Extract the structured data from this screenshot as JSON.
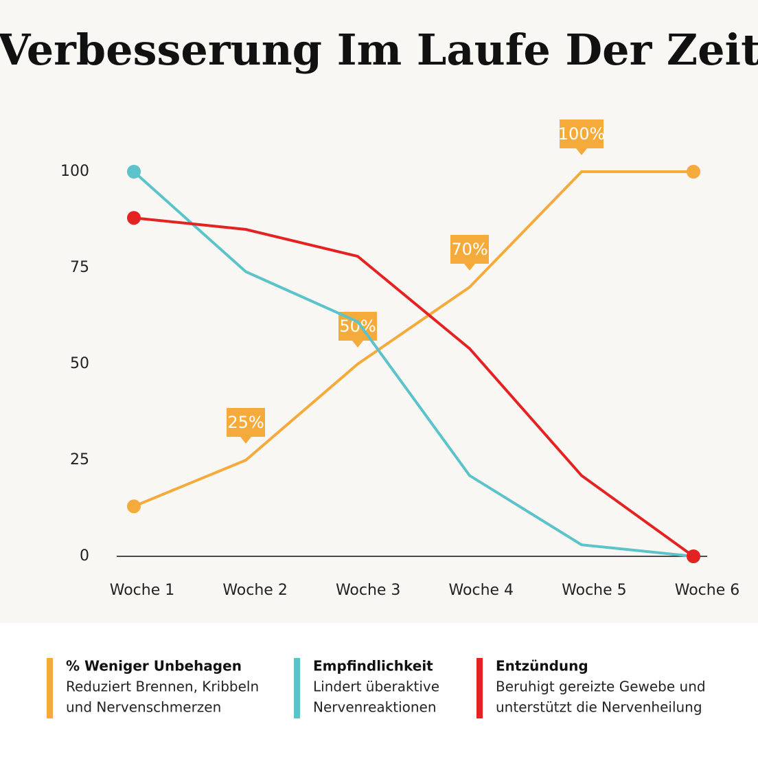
{
  "chart_data": {
    "type": "line",
    "title": "Verbesserung Im Laufe Der Zeit",
    "categories": [
      "Woche 1",
      "Woche 2",
      "Woche 3",
      "Woche 4",
      "Woche 5",
      "Woche 6"
    ],
    "ylim": [
      0,
      100
    ],
    "yticks": [
      0,
      25,
      50,
      75,
      100
    ],
    "grid": false,
    "series": [
      {
        "name": "% Weniger Unbehagen",
        "color": "#f5ab3c",
        "values": [
          13,
          25,
          50,
          70,
          100,
          100
        ],
        "value_labels": [
          null,
          "25%",
          "50%",
          "70%",
          "100%",
          null
        ],
        "description": [
          "Reduziert Brennen, Kribbeln",
          "und Nervenschmerzen"
        ]
      },
      {
        "name": "Empfindlichkeit",
        "color": "#5bc3c9",
        "values": [
          100,
          74,
          61,
          21,
          3,
          0
        ],
        "description": [
          "Lindert überaktive",
          "Nervenreaktionen"
        ]
      },
      {
        "name": "Entzündung",
        "color": "#e52222",
        "values": [
          88,
          85,
          78,
          54,
          21,
          0
        ],
        "description": [
          "Beruhigt gereizte Gewebe und",
          "unterstützt die Nervenheilung"
        ]
      }
    ]
  }
}
